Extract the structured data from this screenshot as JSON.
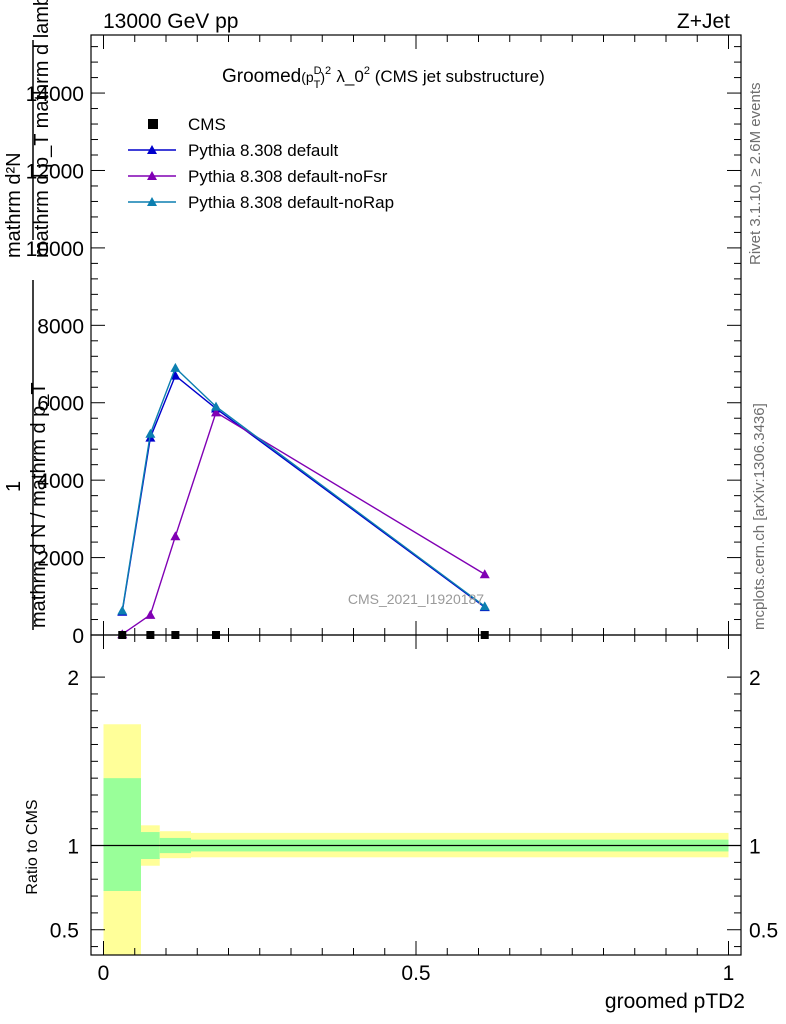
{
  "header": {
    "energy": "13000 GeV pp",
    "process": "Z+Jet"
  },
  "side_labels": {
    "rivet": "Rivet 3.1.10, ≥ 2.6M events",
    "mcplots": "mcplots.cern.ch [arXiv:1306.3436]"
  },
  "chart_data": [
    {
      "type": "line",
      "title": "Groomed(p_T^D)^2 λ_0^2 (CMS jet substructure)",
      "title_parts": {
        "main": "Groomed",
        "sup_d": "D",
        "sub_t": "T",
        "sup2": "2",
        "lambda": "λ_0",
        "lambda_sup": "2",
        "rest": "(CMS jet substructure)"
      },
      "ylabel_top_line1": "mathrm d²N",
      "ylabel_top_line2": "mathrm d p_T mathrm d lambda",
      "ylabel_bottom_line1": "1",
      "ylabel_bottom_line2": "mathrm d N / mathrm d p_T",
      "ylim": [
        0,
        15500
      ],
      "xlim": [
        -0.02,
        1.02
      ],
      "yticks": [
        0,
        2000,
        4000,
        6000,
        8000,
        10000,
        12000,
        14000
      ],
      "ytick_labels": [
        "0",
        "2000",
        "4000",
        "6000",
        "8000",
        "10000",
        "12000",
        "14000"
      ],
      "watermark": "CMS_2021_I1920187",
      "legend_position": "top-left",
      "data_points": {
        "name": "CMS",
        "color": "#000000",
        "x": [
          0.03,
          0.075,
          0.115,
          0.18,
          0.61
        ],
        "y": [
          0,
          0,
          0,
          0,
          0
        ]
      },
      "series": [
        {
          "name": "Pythia 8.308 default",
          "color": "#0000cc",
          "x": [
            0.03,
            0.075,
            0.115,
            0.18,
            0.61
          ],
          "y": [
            600,
            5100,
            6700,
            5850,
            720
          ]
        },
        {
          "name": "Pythia 8.308 default-noFsr",
          "color": "#8000b4",
          "x": [
            0.03,
            0.075,
            0.115,
            0.18,
            0.61
          ],
          "y": [
            20,
            520,
            2550,
            5750,
            1570
          ]
        },
        {
          "name": "Pythia 8.308 default-noRap",
          "color": "#0c7fb0",
          "x": [
            0.03,
            0.075,
            0.115,
            0.18,
            0.61
          ],
          "y": [
            630,
            5200,
            6900,
            5900,
            740
          ]
        }
      ]
    },
    {
      "type": "area",
      "ylabel": "Ratio to CMS",
      "xlabel": "groomed pTD2",
      "ylim": [
        0.35,
        2.25
      ],
      "xlim": [
        -0.02,
        1.02
      ],
      "yticks": [
        0.5,
        1,
        2
      ],
      "ytick_labels": [
        "0.5",
        "1",
        "2"
      ],
      "xticks": [
        0,
        0.5,
        1
      ],
      "xtick_labels": [
        "0",
        "0.5",
        "1"
      ],
      "reference_line": 1,
      "bands": {
        "x_edges": [
          0.0,
          0.06,
          0.09,
          0.14,
          1.0
        ],
        "stat_low": [
          0.73,
          0.92,
          0.955,
          0.965
        ],
        "stat_high": [
          1.4,
          1.08,
          1.045,
          1.035
        ],
        "total_low": [
          0.35,
          0.88,
          0.925,
          0.93
        ],
        "total_high": [
          1.72,
          1.12,
          1.085,
          1.075
        ],
        "stat_color": "#99ff99",
        "total_color": "#ffff99"
      }
    }
  ]
}
